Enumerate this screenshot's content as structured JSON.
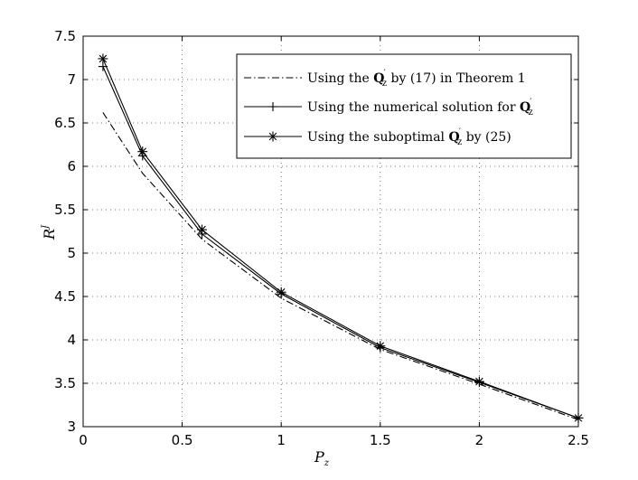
{
  "chart_data": {
    "type": "line",
    "xlabel": "P",
    "xlabel_sub": "z",
    "ylabel": "R",
    "ylabel_sup": "J",
    "xlim": [
      0,
      2.5
    ],
    "ylim": [
      3,
      7.5
    ],
    "xticks": [
      "0",
      "0.5",
      "1",
      "1.5",
      "2",
      "2.5"
    ],
    "yticks": [
      "3",
      "3.5",
      "4",
      "4.5",
      "5",
      "5.5",
      "6",
      "6.5",
      "7",
      "7.5"
    ],
    "grid": true,
    "legend_position": "top-right",
    "series": [
      {
        "name": "Using the Q′z by (17) in Theorem 1",
        "style": "dash-dot",
        "marker": "none",
        "x": [
          0.1,
          0.3,
          0.6,
          1.0,
          1.5,
          2.0,
          2.5
        ],
        "y": [
          6.62,
          5.92,
          5.16,
          4.48,
          3.89,
          3.49,
          3.08
        ]
      },
      {
        "name": "Using the numerical solution for Q′z",
        "style": "solid",
        "marker": "plus",
        "x": [
          0.1,
          0.3,
          0.6,
          1.0,
          1.5,
          2.0,
          2.5
        ],
        "y": [
          7.15,
          6.12,
          5.22,
          4.53,
          3.91,
          3.51,
          3.1
        ]
      },
      {
        "name": "Using the suboptimal Q′z by (25)",
        "style": "solid",
        "marker": "star",
        "x": [
          0.1,
          0.3,
          0.6,
          1.0,
          1.5,
          2.0,
          2.5
        ],
        "y": [
          7.24,
          6.17,
          5.27,
          4.55,
          3.93,
          3.52,
          3.1
        ]
      }
    ],
    "legend": [
      {
        "pre": "Using the ",
        "bold": "Q",
        "sub": "z",
        "post": " by (17) in Theorem 1"
      },
      {
        "pre": "Using the numerical solution for ",
        "bold": "Q",
        "sub": "z",
        "post": ""
      },
      {
        "pre": "Using the suboptimal ",
        "bold": "Q",
        "sub": "z",
        "post": " by (25)"
      }
    ]
  }
}
